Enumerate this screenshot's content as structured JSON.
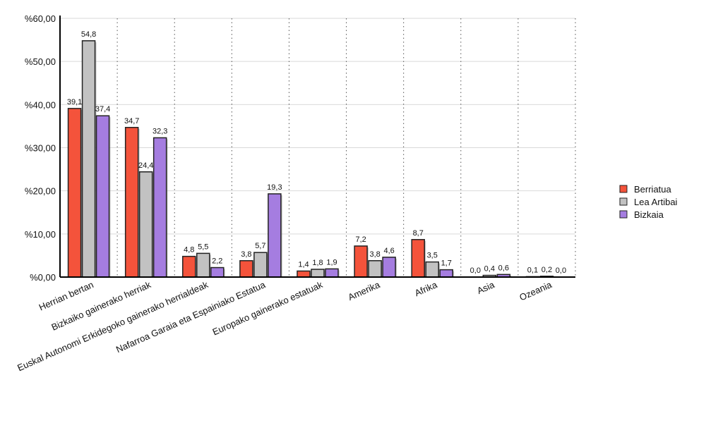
{
  "chart_data": {
    "type": "bar",
    "title": "",
    "xlabel": "",
    "ylabel": "",
    "ylim": [
      0,
      60
    ],
    "yticks": [
      0,
      10,
      20,
      30,
      40,
      50,
      60
    ],
    "ytick_labels": [
      "%0,00",
      "%10,00",
      "%20,00",
      "%30,00",
      "%40,00",
      "%50,00",
      "%60,00"
    ],
    "categories": [
      "Herrian bertan",
      "Bizkaiko gainerako herriak",
      "Euskal Autonomi Erkidegoko gainerako herrialdeak",
      "Nafarroa Garaia eta Espainiako Estatua",
      "Europako gainerako estatuak",
      "Amerika",
      "Afrika",
      "Asia",
      "Ozeania"
    ],
    "series": [
      {
        "name": "Berriatua",
        "color": "#f4533b",
        "values": [
          39.1,
          34.7,
          4.8,
          3.8,
          1.4,
          7.2,
          8.7,
          0.0,
          0.1
        ],
        "labels": [
          "39,1",
          "34,7",
          "4,8",
          "3,8",
          "1,4",
          "7,2",
          "8,7",
          "0,0",
          "0,1"
        ]
      },
      {
        "name": "Lea Artibai",
        "color": "#c2c2c2",
        "values": [
          54.8,
          24.4,
          5.5,
          5.7,
          1.8,
          3.8,
          3.5,
          0.4,
          0.2
        ],
        "labels": [
          "54,8",
          "24,4",
          "5,5",
          "5,7",
          "1,8",
          "3,8",
          "3,5",
          "0,4",
          "0,2"
        ]
      },
      {
        "name": "Bizkaia",
        "color": "#a57de0",
        "values": [
          37.4,
          32.3,
          2.2,
          19.3,
          1.9,
          4.6,
          1.7,
          0.6,
          0.0
        ],
        "labels": [
          "37,4",
          "32,3",
          "2,2",
          "19,3",
          "1,9",
          "4,6",
          "1,7",
          "0,6",
          "0,0"
        ]
      }
    ],
    "grid": true,
    "legend_position": "right"
  }
}
